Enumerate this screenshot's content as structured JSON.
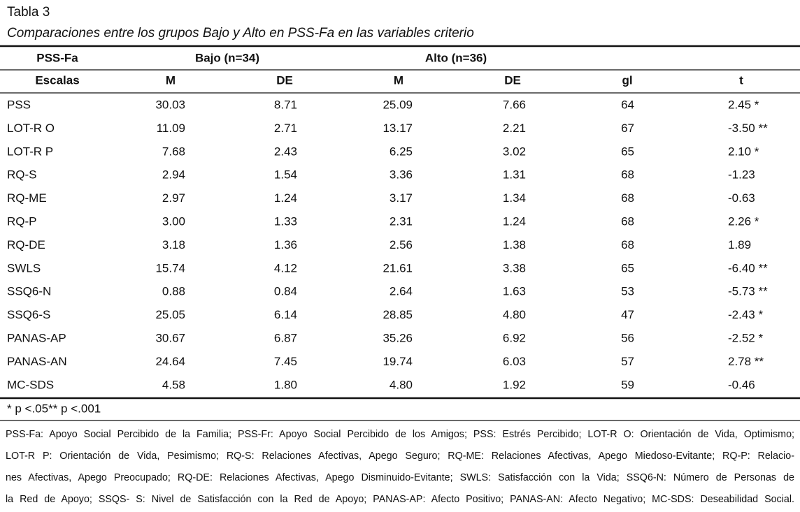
{
  "title": "Tabla 3",
  "subtitle": "Comparaciones entre los grupos Bajo y Alto en PSS-Fa en las variables criterio",
  "table": {
    "group_header": [
      "PSS-Fa",
      "Bajo (n=34)",
      "Alto (n=36)"
    ],
    "columns": [
      "Escalas",
      "M",
      "DE",
      "M",
      "DE",
      "gl",
      "t"
    ],
    "rows": [
      [
        "PSS",
        "30.03",
        "8.71",
        "25.09",
        "7.66",
        "64",
        "2.45 *"
      ],
      [
        "LOT-R O",
        "11.09",
        "2.71",
        "13.17",
        "2.21",
        "67",
        "-3.50 **"
      ],
      [
        "LOT-R P",
        "7.68",
        "2.43",
        "6.25",
        "3.02",
        "65",
        "2.10 *"
      ],
      [
        "RQ-S",
        "2.94",
        "1.54",
        "3.36",
        "1.31",
        "68",
        "-1.23"
      ],
      [
        "RQ-ME",
        "2.97",
        "1.24",
        "3.17",
        "1.34",
        "68",
        "-0.63"
      ],
      [
        "RQ-P",
        "3.00",
        "1.33",
        "2.31",
        "1.24",
        "68",
        "2.26 *"
      ],
      [
        "RQ-DE",
        "3.18",
        "1.36",
        "2.56",
        "1.38",
        "68",
        "1.89"
      ],
      [
        "SWLS",
        "15.74",
        "4.12",
        "21.61",
        "3.38",
        "65",
        "-6.40 **"
      ],
      [
        "SSQ6-N",
        "0.88",
        "0.84",
        "2.64",
        "1.63",
        "53",
        "-5.73 **"
      ],
      [
        "SSQ6-S",
        "25.05",
        "6.14",
        "28.85",
        "4.80",
        "47",
        "-2.43 *"
      ],
      [
        "PANAS-AP",
        "30.67",
        "6.87",
        "35.26",
        "6.92",
        "56",
        "-2.52 *"
      ],
      [
        "PANAS-AN",
        "24.64",
        "7.45",
        "19.74",
        "6.03",
        "57",
        "2.78 **"
      ],
      [
        "MC-SDS",
        "4.58",
        "1.80",
        "4.80",
        "1.92",
        "59",
        "-0.46"
      ]
    ],
    "footnote": "* p <.05** p <.001"
  },
  "notes": [
    "PSS-Fa: Apoyo Social Percibido de la Familia; PSS-Fr: Apoyo Social Percibido de los Amigos; PSS: Estrés Percibido; LOT-R O: Orientación de Vida, Optimismo;",
    "LOT-R P: Orientación de Vida, Pesimismo; RQ-S: Relaciones Afectivas, Apego Seguro; RQ-ME: Relaciones Afectivas, Apego Miedoso-Evitante; RQ-P: Relacio-",
    "nes Afectivas, Apego Preocupado; RQ-DE: Relaciones Afectivas, Apego Disminuido-Evitante; SWLS: Satisfacción con la Vida; SSQ6-N: Número de Personas de",
    "la Red de Apoyo; SSQS- S: Nivel de Satisfacción con la Red de Apoyo; PANAS-AP: Afecto Positivo; PANAS-AN: Afecto Negativo; MC-SDS: Deseabilidad Social."
  ]
}
